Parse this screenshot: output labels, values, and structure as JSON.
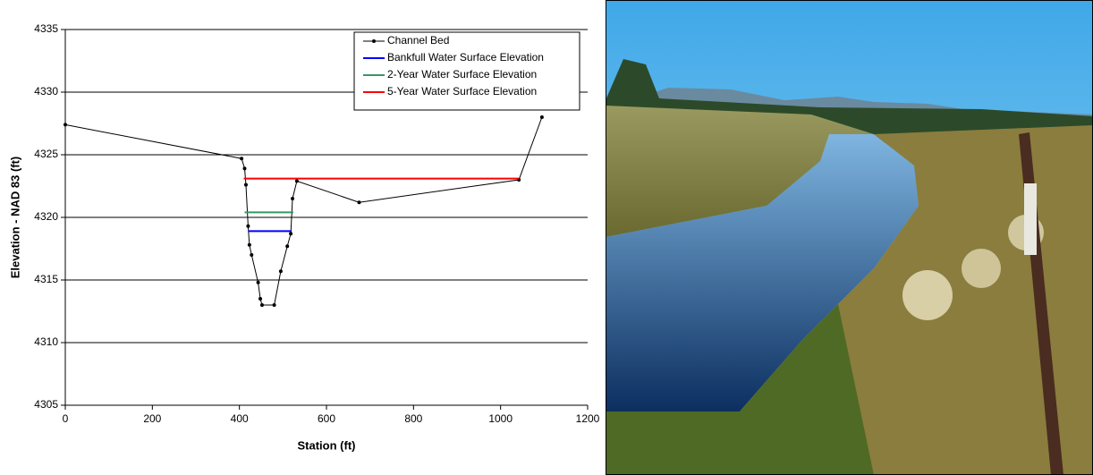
{
  "chart_data": {
    "type": "line",
    "xlabel": "Station (ft)",
    "ylabel": "Elevation - NAD 83 (ft)",
    "xlim": [
      0,
      1200
    ],
    "xticks": [
      0,
      200,
      400,
      600,
      800,
      1000,
      1200
    ],
    "ylim": [
      4305,
      4335
    ],
    "yticks": [
      4305,
      4310,
      4315,
      4320,
      4325,
      4330,
      4335
    ],
    "grid": true,
    "legend": "upper right",
    "series": [
      {
        "name": "Channel Bed",
        "color": "#000000",
        "markers": true,
        "x": [
          0,
          405,
          412,
          415,
          420,
          423,
          428,
          443,
          448,
          452,
          480,
          495,
          510,
          518,
          522,
          532,
          675,
          1042,
          1095
        ],
        "values": [
          4327.4,
          4324.7,
          4323.9,
          4322.6,
          4319.3,
          4317.8,
          4317,
          4314.8,
          4313.5,
          4313,
          4313,
          4315.7,
          4317.7,
          4318.7,
          4321.5,
          4322.9,
          4321.2,
          4323,
          4328
        ]
      },
      {
        "name": "Bankfull Water Surface Elevation",
        "color": "#0000ff",
        "x": [
          420,
          520
        ],
        "values": [
          4318.9,
          4318.9
        ]
      },
      {
        "name": "2-Year Water Surface Elevation",
        "color": "#339966",
        "x": [
          412,
          524
        ],
        "values": [
          4320.4,
          4320.4
        ]
      },
      {
        "name": "5-Year Water Surface Elevation",
        "color": "#ff0000",
        "x": [
          410,
          1042
        ],
        "values": [
          4323.1,
          4323.1
        ]
      }
    ]
  }
}
